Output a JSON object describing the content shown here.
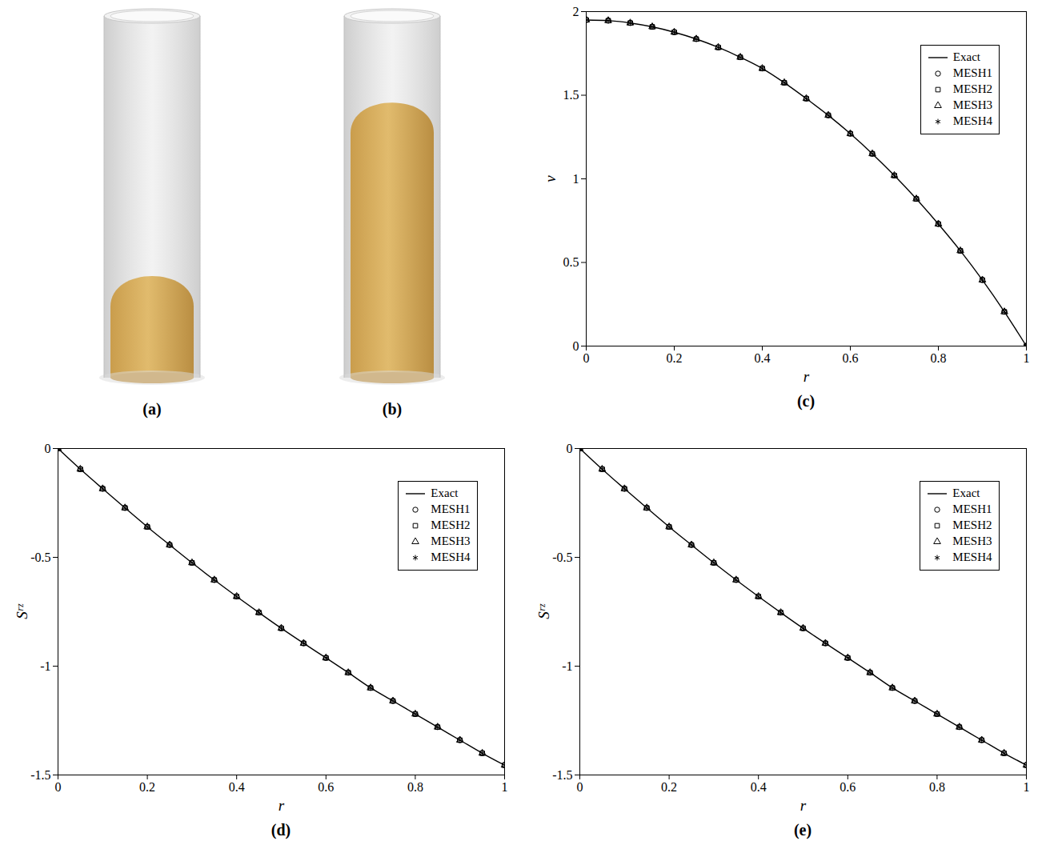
{
  "illustrations": [
    {
      "panel_label": "(a)"
    },
    {
      "panel_label": "(b)"
    }
  ],
  "chart_data": [
    {
      "type": "line",
      "panel_label": "(c)",
      "xlabel": "r",
      "ylabel": "v",
      "xlim": [
        0,
        1
      ],
      "xticks": [
        0,
        0.2,
        0.4,
        0.6,
        0.8,
        1
      ],
      "ylim": [
        0,
        2
      ],
      "yticks": [
        0,
        0.5,
        1,
        1.5,
        2
      ],
      "grid": false,
      "legend": "top-right",
      "x": [
        0,
        0.05,
        0.1,
        0.15,
        0.2,
        0.25,
        0.3,
        0.35,
        0.4,
        0.45,
        0.5,
        0.55,
        0.6,
        0.65,
        0.7,
        0.75,
        0.8,
        0.85,
        0.9,
        0.95,
        1
      ],
      "series": [
        {
          "name": "Exact",
          "type": "line",
          "color": "#000000",
          "line_style": "solid",
          "values": [
            1.95,
            1.946,
            1.932,
            1.909,
            1.877,
            1.836,
            1.786,
            1.727,
            1.66,
            1.575,
            1.48,
            1.38,
            1.27,
            1.15,
            1.02,
            0.88,
            0.73,
            0.57,
            0.395,
            0.205,
            0.0
          ]
        },
        {
          "name": "MESH1",
          "type": "scatter",
          "color": "#000000",
          "marker": "circle",
          "values": [
            1.95,
            1.946,
            1.932,
            1.909,
            1.877,
            1.836,
            1.786,
            1.727,
            1.66,
            1.575,
            1.48,
            1.38,
            1.27,
            1.15,
            1.02,
            0.88,
            0.73,
            0.57,
            0.395,
            0.205,
            0.0
          ]
        },
        {
          "name": "MESH2",
          "type": "scatter",
          "color": "#000000",
          "marker": "square",
          "values": [
            1.95,
            1.946,
            1.932,
            1.909,
            1.877,
            1.836,
            1.786,
            1.727,
            1.66,
            1.575,
            1.48,
            1.38,
            1.27,
            1.15,
            1.02,
            0.88,
            0.73,
            0.57,
            0.395,
            0.205,
            0.0
          ]
        },
        {
          "name": "MESH3",
          "type": "scatter",
          "color": "#000000",
          "marker": "triangle",
          "values": [
            1.95,
            1.946,
            1.932,
            1.909,
            1.877,
            1.836,
            1.786,
            1.727,
            1.66,
            1.575,
            1.48,
            1.38,
            1.27,
            1.15,
            1.02,
            0.88,
            0.73,
            0.57,
            0.395,
            0.205,
            0.0
          ]
        },
        {
          "name": "MESH4",
          "type": "scatter",
          "color": "#000000",
          "marker": "asterisk",
          "values": [
            1.95,
            1.946,
            1.932,
            1.909,
            1.877,
            1.836,
            1.786,
            1.727,
            1.66,
            1.575,
            1.48,
            1.38,
            1.27,
            1.15,
            1.02,
            0.88,
            0.73,
            0.57,
            0.395,
            0.205,
            0.0
          ]
        }
      ]
    },
    {
      "type": "line",
      "panel_label": "(d)",
      "xlabel": "r",
      "ylabel": "Sʳᶻ",
      "xlim": [
        0,
        1
      ],
      "xticks": [
        0,
        0.2,
        0.4,
        0.6,
        0.8,
        1
      ],
      "ylim": [
        -1.5,
        0
      ],
      "yticks": [
        -1.5,
        -1,
        -0.5,
        0
      ],
      "grid": false,
      "legend": "top-right",
      "x": [
        0,
        0.05,
        0.1,
        0.15,
        0.2,
        0.25,
        0.3,
        0.35,
        0.4,
        0.45,
        0.5,
        0.55,
        0.6,
        0.65,
        0.7,
        0.75,
        0.8,
        0.85,
        0.9,
        0.95,
        1
      ],
      "series": [
        {
          "name": "Exact",
          "type": "line",
          "color": "#000000",
          "line_style": "solid",
          "values": [
            0,
            -0.095,
            -0.185,
            -0.273,
            -0.36,
            -0.443,
            -0.525,
            -0.604,
            -0.68,
            -0.754,
            -0.826,
            -0.895,
            -0.962,
            -1.03,
            -1.1,
            -1.16,
            -1.22,
            -1.28,
            -1.34,
            -1.4,
            -1.455
          ]
        },
        {
          "name": "MESH1",
          "type": "scatter",
          "color": "#000000",
          "marker": "circle",
          "values": [
            0,
            -0.095,
            -0.185,
            -0.273,
            -0.36,
            -0.443,
            -0.525,
            -0.604,
            -0.68,
            -0.754,
            -0.826,
            -0.895,
            -0.962,
            -1.03,
            -1.1,
            -1.16,
            -1.22,
            -1.28,
            -1.34,
            -1.4,
            -1.455
          ]
        },
        {
          "name": "MESH2",
          "type": "scatter",
          "color": "#000000",
          "marker": "square",
          "values": [
            0,
            -0.095,
            -0.185,
            -0.273,
            -0.36,
            -0.443,
            -0.525,
            -0.604,
            -0.68,
            -0.754,
            -0.826,
            -0.895,
            -0.962,
            -1.03,
            -1.1,
            -1.16,
            -1.22,
            -1.28,
            -1.34,
            -1.4,
            -1.455
          ]
        },
        {
          "name": "MESH3",
          "type": "scatter",
          "color": "#000000",
          "marker": "triangle",
          "values": [
            0,
            -0.095,
            -0.185,
            -0.273,
            -0.36,
            -0.443,
            -0.525,
            -0.604,
            -0.68,
            -0.754,
            -0.826,
            -0.895,
            -0.962,
            -1.03,
            -1.1,
            -1.16,
            -1.22,
            -1.28,
            -1.34,
            -1.4,
            -1.455
          ]
        },
        {
          "name": "MESH4",
          "type": "scatter",
          "color": "#000000",
          "marker": "asterisk",
          "values": [
            0,
            -0.095,
            -0.185,
            -0.273,
            -0.36,
            -0.443,
            -0.525,
            -0.604,
            -0.68,
            -0.754,
            -0.826,
            -0.895,
            -0.962,
            -1.03,
            -1.1,
            -1.16,
            -1.22,
            -1.28,
            -1.34,
            -1.4,
            -1.455
          ]
        }
      ]
    },
    {
      "type": "line",
      "panel_label": "(e)",
      "xlabel": "r",
      "ylabel": "Sʳᶻ",
      "xlim": [
        0,
        1
      ],
      "xticks": [
        0,
        0.2,
        0.4,
        0.6,
        0.8,
        1
      ],
      "ylim": [
        -1.5,
        0
      ],
      "yticks": [
        -1.5,
        -1,
        -0.5,
        0
      ],
      "grid": false,
      "legend": "top-right",
      "x": [
        0,
        0.05,
        0.1,
        0.15,
        0.2,
        0.25,
        0.3,
        0.35,
        0.4,
        0.45,
        0.5,
        0.55,
        0.6,
        0.65,
        0.7,
        0.75,
        0.8,
        0.85,
        0.9,
        0.95,
        1
      ],
      "series": [
        {
          "name": "Exact",
          "type": "line",
          "color": "#000000",
          "line_style": "solid",
          "values": [
            0,
            -0.095,
            -0.185,
            -0.273,
            -0.36,
            -0.443,
            -0.525,
            -0.604,
            -0.68,
            -0.754,
            -0.826,
            -0.895,
            -0.962,
            -1.03,
            -1.1,
            -1.16,
            -1.22,
            -1.28,
            -1.34,
            -1.4,
            -1.455
          ]
        },
        {
          "name": "MESH1",
          "type": "scatter",
          "color": "#000000",
          "marker": "circle",
          "values": [
            0,
            -0.095,
            -0.185,
            -0.273,
            -0.36,
            -0.443,
            -0.525,
            -0.604,
            -0.68,
            -0.754,
            -0.826,
            -0.895,
            -0.962,
            -1.03,
            -1.1,
            -1.16,
            -1.22,
            -1.28,
            -1.34,
            -1.4,
            -1.455
          ]
        },
        {
          "name": "MESH2",
          "type": "scatter",
          "color": "#000000",
          "marker": "square",
          "values": [
            0,
            -0.095,
            -0.185,
            -0.273,
            -0.36,
            -0.443,
            -0.525,
            -0.604,
            -0.68,
            -0.754,
            -0.826,
            -0.895,
            -0.962,
            -1.03,
            -1.1,
            -1.16,
            -1.22,
            -1.28,
            -1.34,
            -1.4,
            -1.455
          ]
        },
        {
          "name": "MESH3",
          "type": "scatter",
          "color": "#000000",
          "marker": "triangle",
          "values": [
            0,
            -0.095,
            -0.185,
            -0.273,
            -0.36,
            -0.443,
            -0.525,
            -0.604,
            -0.68,
            -0.754,
            -0.826,
            -0.895,
            -0.962,
            -1.03,
            -1.1,
            -1.16,
            -1.22,
            -1.28,
            -1.34,
            -1.4,
            -1.455
          ]
        },
        {
          "name": "MESH4",
          "type": "scatter",
          "color": "#000000",
          "marker": "asterisk",
          "values": [
            0,
            -0.095,
            -0.185,
            -0.273,
            -0.36,
            -0.443,
            -0.525,
            -0.604,
            -0.68,
            -0.754,
            -0.826,
            -0.895,
            -0.962,
            -1.03,
            -1.1,
            -1.16,
            -1.22,
            -1.28,
            -1.34,
            -1.4,
            -1.455
          ]
        }
      ]
    }
  ]
}
